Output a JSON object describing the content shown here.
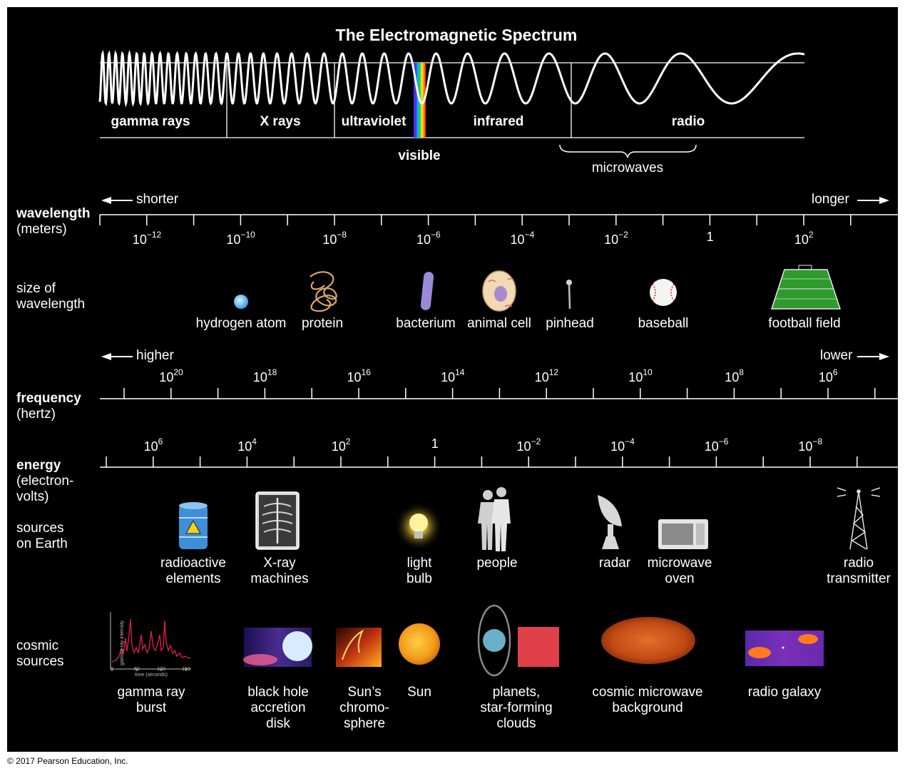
{
  "title": "The Electromagnetic Spectrum",
  "bands": [
    "gamma rays",
    "X rays",
    "ultraviolet",
    "infrared",
    "radio"
  ],
  "visible_label": "visible",
  "microwaves_label": "microwaves",
  "wavelength": {
    "label": "wavelength",
    "unit": "(meters)",
    "shorter": "shorter",
    "longer": "longer",
    "ticks": [
      {
        "base": "10",
        "exp": "−12"
      },
      {
        "base": "10",
        "exp": "−10"
      },
      {
        "base": "10",
        "exp": "−8"
      },
      {
        "base": "10",
        "exp": "−6"
      },
      {
        "base": "10",
        "exp": "−4"
      },
      {
        "base": "10",
        "exp": "−2"
      },
      {
        "base": "1",
        "exp": ""
      },
      {
        "base": "10",
        "exp": "2"
      }
    ]
  },
  "size": {
    "label": "size of\nwavelength",
    "items": [
      "hydrogen atom",
      "protein",
      "bacterium",
      "animal cell",
      "pinhead",
      "baseball",
      "football field"
    ]
  },
  "frequency": {
    "label": "frequency",
    "unit": "(hertz)",
    "higher": "higher",
    "lower": "lower",
    "ticks": [
      {
        "base": "10",
        "exp": "20"
      },
      {
        "base": "10",
        "exp": "18"
      },
      {
        "base": "10",
        "exp": "16"
      },
      {
        "base": "10",
        "exp": "14"
      },
      {
        "base": "10",
        "exp": "12"
      },
      {
        "base": "10",
        "exp": "10"
      },
      {
        "base": "10",
        "exp": "8"
      },
      {
        "base": "10",
        "exp": "6"
      }
    ]
  },
  "energy": {
    "label": "energy",
    "unit": "(electron-\nvolts)",
    "ticks": [
      {
        "base": "10",
        "exp": "6"
      },
      {
        "base": "10",
        "exp": "4"
      },
      {
        "base": "10",
        "exp": "2"
      },
      {
        "base": "1",
        "exp": ""
      },
      {
        "base": "10",
        "exp": "−2"
      },
      {
        "base": "10",
        "exp": "−4"
      },
      {
        "base": "10",
        "exp": "−6"
      },
      {
        "base": "10",
        "exp": "−8"
      }
    ]
  },
  "earth_sources": {
    "label": "sources\non Earth",
    "items": [
      "radioactive\nelements",
      "X-ray\nmachines",
      "light\nbulb",
      "people",
      "radar",
      "microwave\noven",
      "radio\ntransmitter"
    ]
  },
  "cosmic_sources": {
    "label": "cosmic\nsources",
    "items": [
      "gamma ray\nburst",
      "black hole\naccretion\ndisk",
      "Sun’s\nchromo-\nsphere",
      "Sun",
      "planets,\nstar-forming\nclouds",
      "cosmic microwave\nbackground",
      "radio galaxy"
    ],
    "gamma_plot": {
      "y_axis_label": "gamma-ray intensity",
      "x_axis_label": "time (seconds)",
      "x_ticks": [
        "0",
        "50",
        "100",
        "150"
      ]
    }
  },
  "copyright": "© 2017 Pearson Education, Inc."
}
